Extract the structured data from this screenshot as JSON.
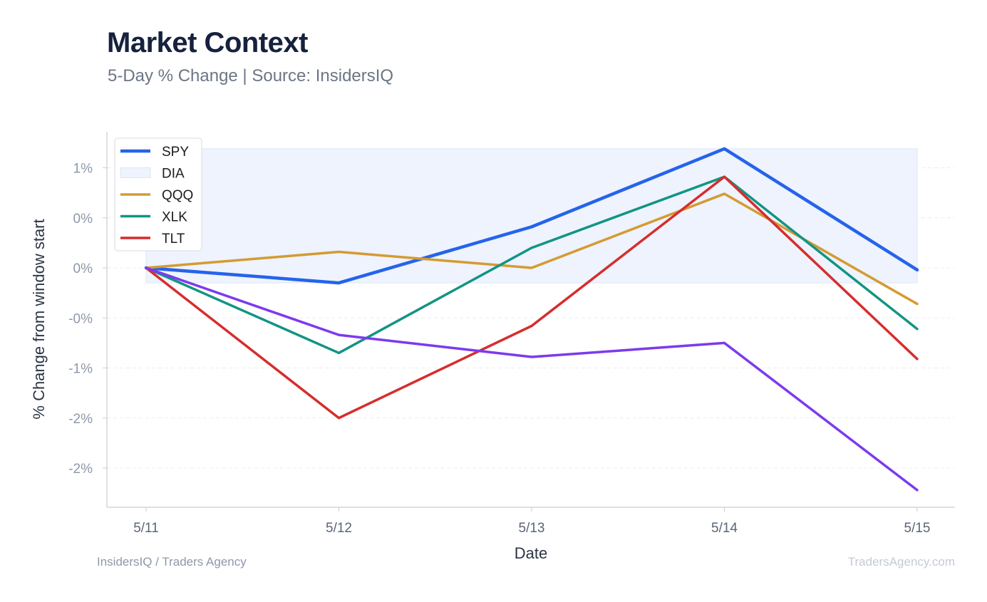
{
  "header": {
    "title": "Market Context",
    "subtitle": "5-Day % Change | Source: InsidersIQ"
  },
  "footer": {
    "left": "InsidersIQ / Traders Agency",
    "right": "TradersAgency.com"
  },
  "chart_data": {
    "type": "line",
    "xlabel": "Date",
    "ylabel": "% Change from window start",
    "categories": [
      "5/11",
      "5/12",
      "5/13",
      "5/14",
      "5/15"
    ],
    "ylim": [
      -1.9,
      1.9
    ],
    "yticks": [
      1.0,
      0.5,
      0.0,
      -0.5,
      -1.0,
      -1.5,
      -2.0
    ],
    "ytick_labels": [
      "1%",
      "0%",
      "0%",
      "-0%",
      "-1%",
      "-2%",
      "-2%"
    ],
    "grid": true,
    "legend_position": "top-left",
    "series": [
      {
        "name": "SPY",
        "color": "#2563eb",
        "values": [
          0.0,
          -0.15,
          0.41,
          1.19,
          -0.02
        ]
      },
      {
        "name": "DIA",
        "color": "#eef3fd",
        "style": "band",
        "range": [
          -0.15,
          1.19
        ]
      },
      {
        "name": "QQQ",
        "color": "#d49b33",
        "values": [
          0.0,
          0.16,
          0.0,
          0.74,
          -0.36
        ]
      },
      {
        "name": "XLK",
        "color": "#129484",
        "values": [
          0.0,
          -0.85,
          0.2,
          0.91,
          -0.61
        ]
      },
      {
        "name": "TLT",
        "color": "#d62d2d",
        "values": [
          0.0,
          -1.5,
          -0.58,
          0.91,
          -0.91
        ]
      },
      {
        "name": "",
        "color": "#7c3aed",
        "values": [
          0.0,
          -0.67,
          -0.89,
          -0.75,
          -2.22
        ]
      }
    ]
  }
}
